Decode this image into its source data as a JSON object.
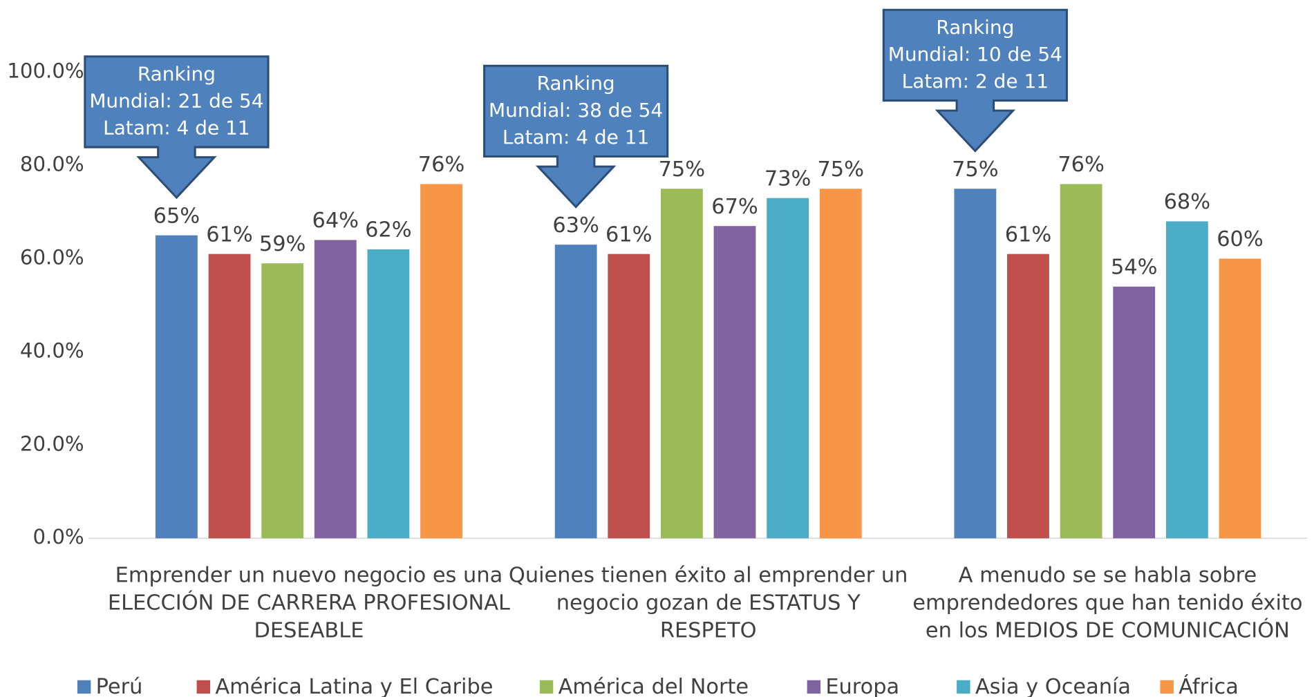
{
  "chart_data": {
    "type": "bar",
    "categories": [
      "Emprender un nuevo negocio es una ELECCIÓN DE CARRERA PROFESIONAL DESEABLE",
      "Quienes tienen éxito al emprender un negocio gozan de ESTATUS Y RESPETO",
      "A menudo se se habla sobre emprendedores que han tenido éxito en los MEDIOS DE COMUNICACIÓN"
    ],
    "series": [
      {
        "name": "Perú",
        "color": "#4f81bd",
        "values": [
          65,
          63,
          75
        ],
        "value_labels": [
          "65%",
          "63%",
          "75%"
        ]
      },
      {
        "name": "América Latina y El Caribe",
        "color": "#c0504d",
        "values": [
          61,
          61,
          61
        ],
        "value_labels": [
          "61%",
          "61%",
          "61%"
        ]
      },
      {
        "name": "América del Norte",
        "color": "#9bbb59",
        "values": [
          59,
          75,
          76
        ],
        "value_labels": [
          "59%",
          "75%",
          "76%"
        ]
      },
      {
        "name": "Europa",
        "color": "#8064a2",
        "values": [
          64,
          67,
          54
        ],
        "value_labels": [
          "64%",
          "67%",
          "54%"
        ]
      },
      {
        "name": "Asia y Oceanía",
        "color": "#4bacc6",
        "values": [
          62,
          73,
          68
        ],
        "value_labels": [
          "62%",
          "73%",
          "68%"
        ]
      },
      {
        "name": "África",
        "color": "#f79646",
        "values": [
          76,
          75,
          60
        ],
        "value_labels": [
          "76%",
          "75%",
          "60%"
        ]
      }
    ],
    "ylim": [
      0,
      100
    ],
    "yticks": [
      {
        "value": 0,
        "label": "0.0%"
      },
      {
        "value": 20,
        "label": "20.0%"
      },
      {
        "value": 40,
        "label": "40.0%"
      },
      {
        "value": 60,
        "label": "60.0%"
      },
      {
        "value": 80,
        "label": "80.0%"
      },
      {
        "value": 100,
        "label": "100.0%"
      }
    ],
    "legend": "bottom",
    "annotations": [
      {
        "lines": [
          "Ranking",
          "Mundial: 21 de 54",
          "Latam: 4 de 11"
        ]
      },
      {
        "lines": [
          "Ranking",
          "Mundial: 38 de 54",
          "Latam: 4 de 11"
        ]
      },
      {
        "lines": [
          "Ranking",
          "Mundial: 10 de 54",
          "Latam: 2 de 11"
        ]
      }
    ]
  }
}
